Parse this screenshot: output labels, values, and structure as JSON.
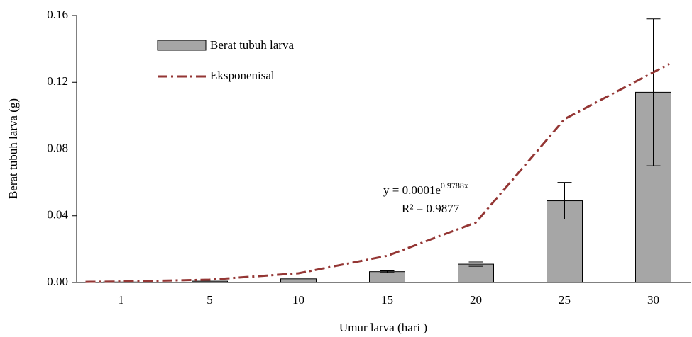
{
  "chart_data": {
    "type": "bar",
    "x_label": "Umur larva  (hari )",
    "y_label": "Berat tubuh larva  (g)",
    "categories": [
      "1",
      "5",
      "10",
      "15",
      "20",
      "25",
      "30"
    ],
    "series": [
      {
        "name": "Berat tubuh larva",
        "color": "#a6a6a6",
        "values": [
          0.0003,
          0.0008,
          0.0022,
          0.0065,
          0.011,
          0.049,
          0.114
        ],
        "errors": [
          0,
          0,
          0,
          0.0005,
          0.0013,
          0.011,
          0.044
        ]
      }
    ],
    "trendline": {
      "name": "Eksponenisal",
      "color": "#943634",
      "x": [
        0.6,
        1,
        2,
        3,
        4,
        5,
        6,
        7.18
      ],
      "values": [
        0.0004,
        0.0006,
        0.0017,
        0.0055,
        0.016,
        0.036,
        0.098,
        0.131
      ],
      "equation": "y = 0.0001e",
      "exponent": "0.9788x",
      "r2": "R² = 0.9877"
    },
    "ylim": [
      0,
      0.16
    ],
    "yticks": [
      {
        "value": 0,
        "label": "0.00"
      },
      0.04,
      0.08,
      0.12,
      0.16
    ],
    "legend": "top-left"
  }
}
